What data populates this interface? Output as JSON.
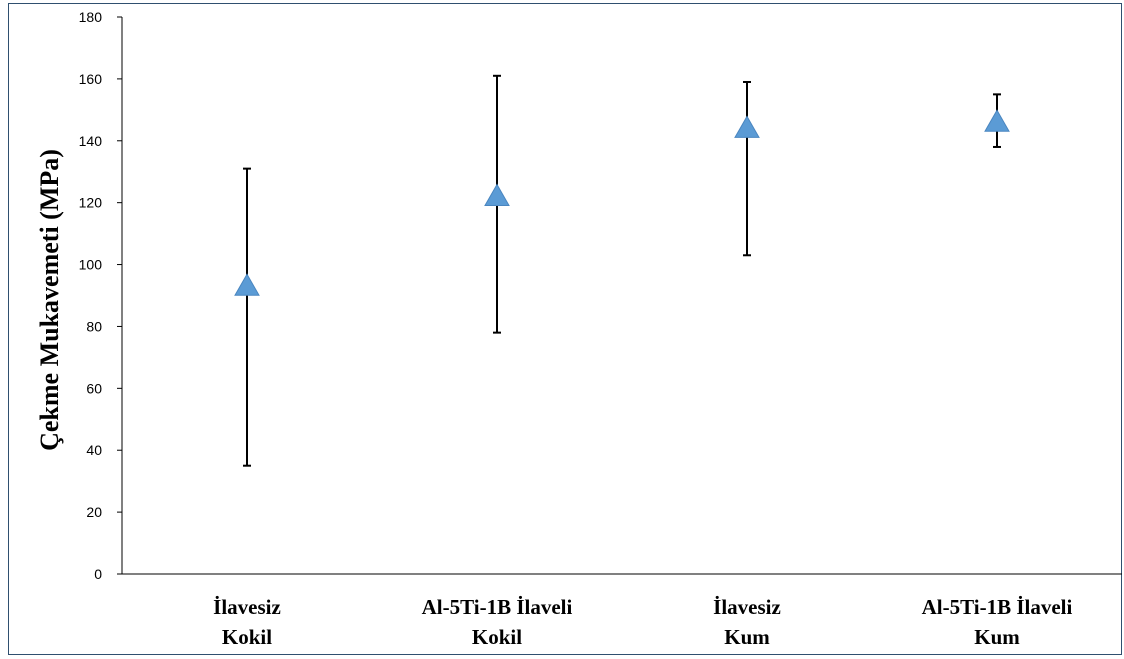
{
  "chart_data": {
    "type": "scatter",
    "title": "",
    "xlabel": "",
    "ylabel": "Çekme Mukavemeti (MPa)",
    "ylim": [
      0,
      180
    ],
    "yticks": [
      0,
      20,
      40,
      60,
      80,
      100,
      120,
      140,
      160,
      180
    ],
    "grid": false,
    "legend": "none",
    "marker": "triangle",
    "marker_color": "#5b9bd5",
    "categories": [
      [
        "İlavesiz",
        "Kokil"
      ],
      [
        "Al-5Ti-1B İlaveli",
        "Kokil"
      ],
      [
        "İlavesiz",
        "Kum"
      ],
      [
        "Al-5Ti-1B İlaveli",
        "Kum"
      ]
    ],
    "values": [
      93,
      122,
      144,
      146
    ],
    "error_low": [
      35,
      78,
      103,
      138
    ],
    "error_high": [
      131,
      161,
      159,
      155
    ]
  }
}
